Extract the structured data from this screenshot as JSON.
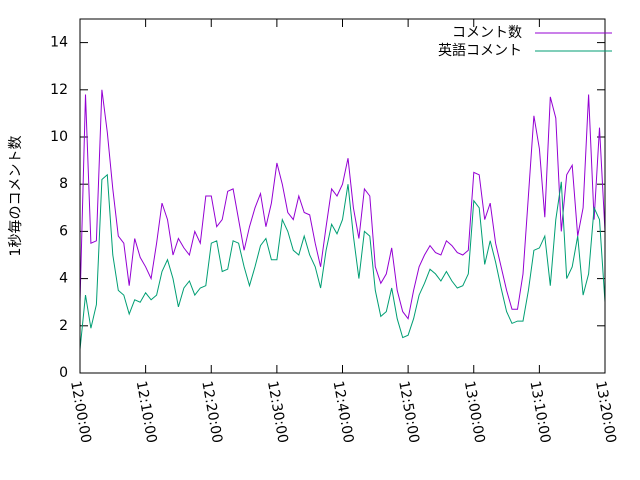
{
  "chart_data": {
    "type": "line",
    "y_label": "1秒毎のコメント数",
    "x": [
      "12:00:00",
      "12:00:50",
      "12:01:40",
      "12:02:30",
      "12:03:20",
      "12:04:10",
      "12:05:00",
      "12:05:50",
      "12:06:40",
      "12:07:30",
      "12:08:20",
      "12:09:10",
      "12:10:00",
      "12:10:50",
      "12:11:40",
      "12:12:30",
      "12:13:20",
      "12:14:10",
      "12:15:00",
      "12:15:50",
      "12:16:40",
      "12:17:30",
      "12:18:20",
      "12:19:10",
      "12:20:00",
      "12:20:50",
      "12:21:40",
      "12:22:30",
      "12:23:20",
      "12:24:10",
      "12:25:00",
      "12:25:50",
      "12:26:40",
      "12:27:30",
      "12:28:20",
      "12:29:10",
      "12:30:00",
      "12:30:50",
      "12:31:40",
      "12:32:30",
      "12:33:20",
      "12:34:10",
      "12:35:00",
      "12:35:50",
      "12:36:40",
      "12:37:30",
      "12:38:20",
      "12:39:10",
      "12:40:00",
      "12:40:50",
      "12:41:40",
      "12:42:30",
      "12:43:20",
      "12:44:10",
      "12:45:00",
      "12:45:50",
      "12:46:40",
      "12:47:30",
      "12:48:20",
      "12:49:10",
      "12:50:00",
      "12:50:50",
      "12:51:40",
      "12:52:30",
      "12:53:20",
      "12:54:10",
      "12:55:00",
      "12:55:50",
      "12:56:40",
      "12:57:30",
      "12:58:20",
      "12:59:10",
      "13:00:00",
      "13:00:50",
      "13:01:40",
      "13:02:30",
      "13:03:20",
      "13:04:10",
      "13:05:00",
      "13:05:50",
      "13:06:40",
      "13:07:30",
      "13:08:20",
      "13:09:10",
      "13:10:00",
      "13:10:50",
      "13:11:40",
      "13:12:30",
      "13:13:20",
      "13:14:10",
      "13:15:00",
      "13:15:50",
      "13:16:40",
      "13:17:30",
      "13:18:20",
      "13:19:10",
      "13:20:00"
    ],
    "series": [
      {
        "name": "コメント数",
        "color": "#9400d3",
        "values": [
          3.0,
          11.8,
          5.5,
          5.6,
          12.0,
          10.2,
          7.8,
          5.8,
          5.5,
          3.7,
          5.7,
          4.9,
          4.5,
          4.0,
          5.5,
          7.2,
          6.5,
          5.0,
          5.7,
          5.3,
          5.0,
          6.0,
          5.5,
          7.5,
          7.5,
          6.2,
          6.5,
          7.7,
          7.8,
          6.5,
          5.2,
          6.2,
          7.0,
          7.6,
          6.2,
          7.2,
          8.9,
          8.0,
          6.8,
          6.5,
          7.5,
          6.8,
          6.7,
          5.5,
          4.5,
          6.2,
          7.8,
          7.5,
          8.0,
          9.1,
          7.0,
          5.7,
          7.8,
          7.5,
          4.5,
          3.8,
          4.2,
          5.3,
          3.5,
          2.6,
          2.3,
          3.5,
          4.5,
          5.0,
          5.4,
          5.1,
          5.0,
          5.6,
          5.4,
          5.1,
          5.0,
          5.2,
          8.5,
          8.4,
          6.5,
          7.2,
          5.5,
          4.5,
          3.5,
          2.7,
          2.7,
          4.2,
          7.5,
          10.9,
          9.5,
          6.6,
          11.7,
          10.8,
          6.0,
          8.4,
          8.8,
          5.8,
          7.0,
          11.8,
          6.5,
          10.4,
          6.0
        ]
      },
      {
        "name": "英語コメント",
        "color": "#009e73",
        "values": [
          1.0,
          3.3,
          1.9,
          2.9,
          8.2,
          8.4,
          5.0,
          3.5,
          3.3,
          2.5,
          3.1,
          3.0,
          3.4,
          3.1,
          3.3,
          4.3,
          4.8,
          4.0,
          2.8,
          3.6,
          3.9,
          3.3,
          3.6,
          3.7,
          5.5,
          5.6,
          4.3,
          4.4,
          5.6,
          5.5,
          4.5,
          3.7,
          4.5,
          5.4,
          5.7,
          4.8,
          4.8,
          6.5,
          6.0,
          5.2,
          5.0,
          5.8,
          5.0,
          4.5,
          3.6,
          5.2,
          6.3,
          5.9,
          6.5,
          8.0,
          5.8,
          4.0,
          6.0,
          5.8,
          3.5,
          2.4,
          2.6,
          3.6,
          2.3,
          1.5,
          1.6,
          2.3,
          3.3,
          3.8,
          4.4,
          4.2,
          3.9,
          4.3,
          3.9,
          3.6,
          3.7,
          4.2,
          7.3,
          7.0,
          4.6,
          5.6,
          4.7,
          3.6,
          2.6,
          2.1,
          2.2,
          2.2,
          3.5,
          5.2,
          5.3,
          5.8,
          3.7,
          6.5,
          8.1,
          4.0,
          4.5,
          5.8,
          3.3,
          4.2,
          7.0,
          6.5,
          3.0
        ]
      }
    ],
    "xlim": [
      "12:00:00",
      "13:20:00"
    ],
    "xticks": [
      "12:00:00",
      "12:10:00",
      "12:20:00",
      "12:30:00",
      "12:40:00",
      "12:50:00",
      "13:00:00",
      "13:10:00",
      "13:20:00"
    ],
    "ylim": [
      0,
      15
    ],
    "yticks": [
      0,
      2,
      4,
      6,
      8,
      10,
      12,
      14
    ],
    "legend": "top-right"
  }
}
